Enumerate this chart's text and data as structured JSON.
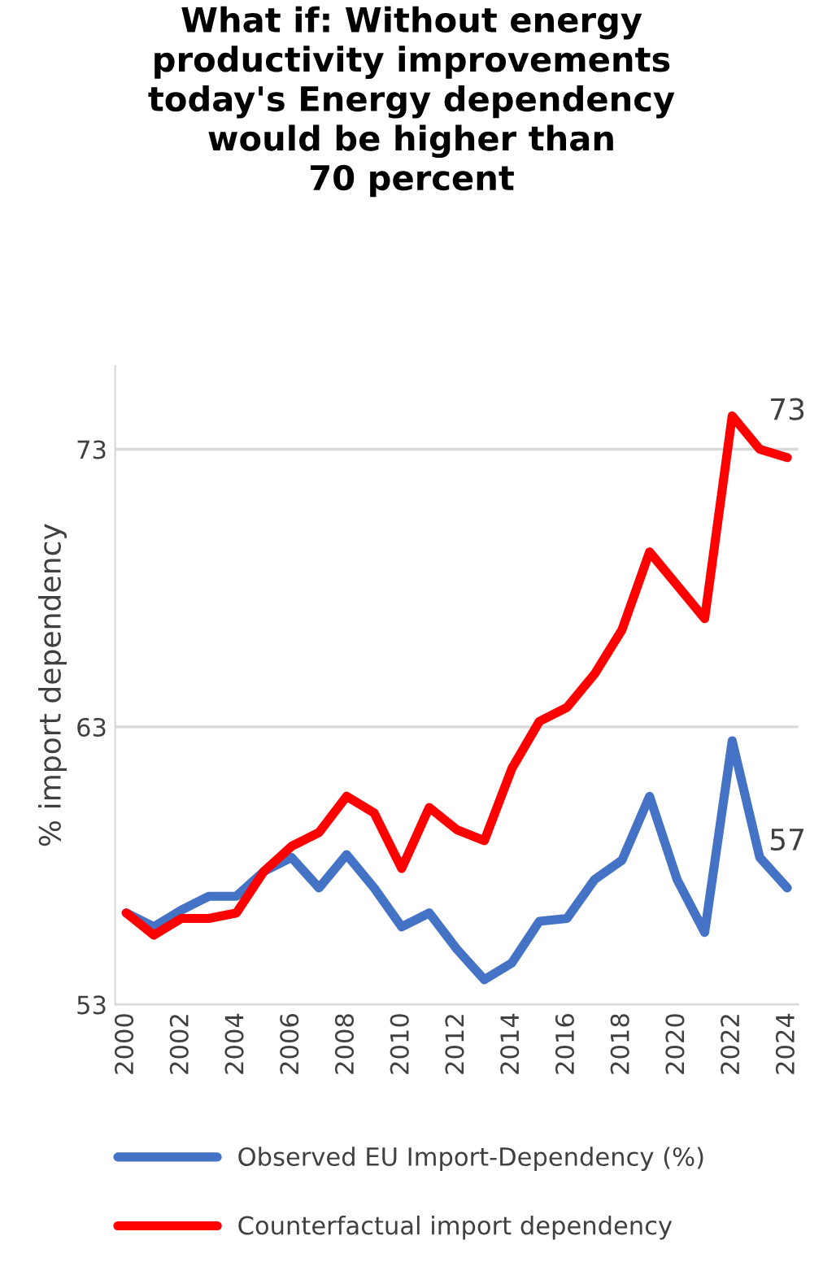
{
  "chart_data": {
    "type": "line",
    "title": "What if: Without energy\nproductivity improvements\ntoday's Energy dependency\nwould be higher than\n70 percent",
    "ylabel": "% import dependency",
    "x": [
      2000,
      2001,
      2002,
      2003,
      2004,
      2005,
      2006,
      2007,
      2008,
      2009,
      2010,
      2011,
      2012,
      2013,
      2014,
      2015,
      2016,
      2017,
      2018,
      2019,
      2020,
      2021,
      2022,
      2023,
      2024
    ],
    "series": [
      {
        "name": "Observed EU Import-Dependency (%)",
        "color": "#4472c4",
        "values": [
          56.3,
          55.8,
          56.4,
          56.9,
          56.9,
          57.8,
          58.3,
          57.2,
          58.4,
          57.2,
          55.8,
          56.3,
          55.0,
          53.9,
          54.5,
          56.0,
          56.1,
          57.5,
          58.2,
          60.5,
          57.5,
          55.6,
          62.5,
          58.3,
          57.2
        ],
        "value_labels": [
          null,
          null,
          null,
          null,
          null,
          null,
          null,
          null,
          null,
          null,
          null,
          null,
          null,
          null,
          null,
          null,
          null,
          null,
          null,
          null,
          null,
          null,
          null,
          null,
          "57"
        ]
      },
      {
        "name": "Counterfactual import dependency",
        "color": "#ff0000",
        "values": [
          56.3,
          55.5,
          56.1,
          56.1,
          56.3,
          57.8,
          58.7,
          59.2,
          60.5,
          59.9,
          57.9,
          60.1,
          59.3,
          58.9,
          61.5,
          63.2,
          63.7,
          64.9,
          66.5,
          69.3,
          68.1,
          66.9,
          74.2,
          73.0,
          72.7
        ],
        "value_labels": [
          null,
          null,
          null,
          null,
          null,
          null,
          null,
          null,
          null,
          null,
          null,
          null,
          null,
          null,
          null,
          null,
          null,
          null,
          null,
          null,
          null,
          null,
          null,
          null,
          "73"
        ]
      }
    ],
    "xlim": [
      1999.6,
      2024.4
    ],
    "xticks": [
      2000,
      2002,
      2004,
      2006,
      2008,
      2010,
      2012,
      2014,
      2016,
      2018,
      2020,
      2022,
      2024
    ],
    "ylim": [
      53,
      76
    ],
    "yticks": [
      53,
      63,
      73
    ],
    "grid": "y",
    "legend": "bottom",
    "marker": "none",
    "line_style": "solid"
  }
}
